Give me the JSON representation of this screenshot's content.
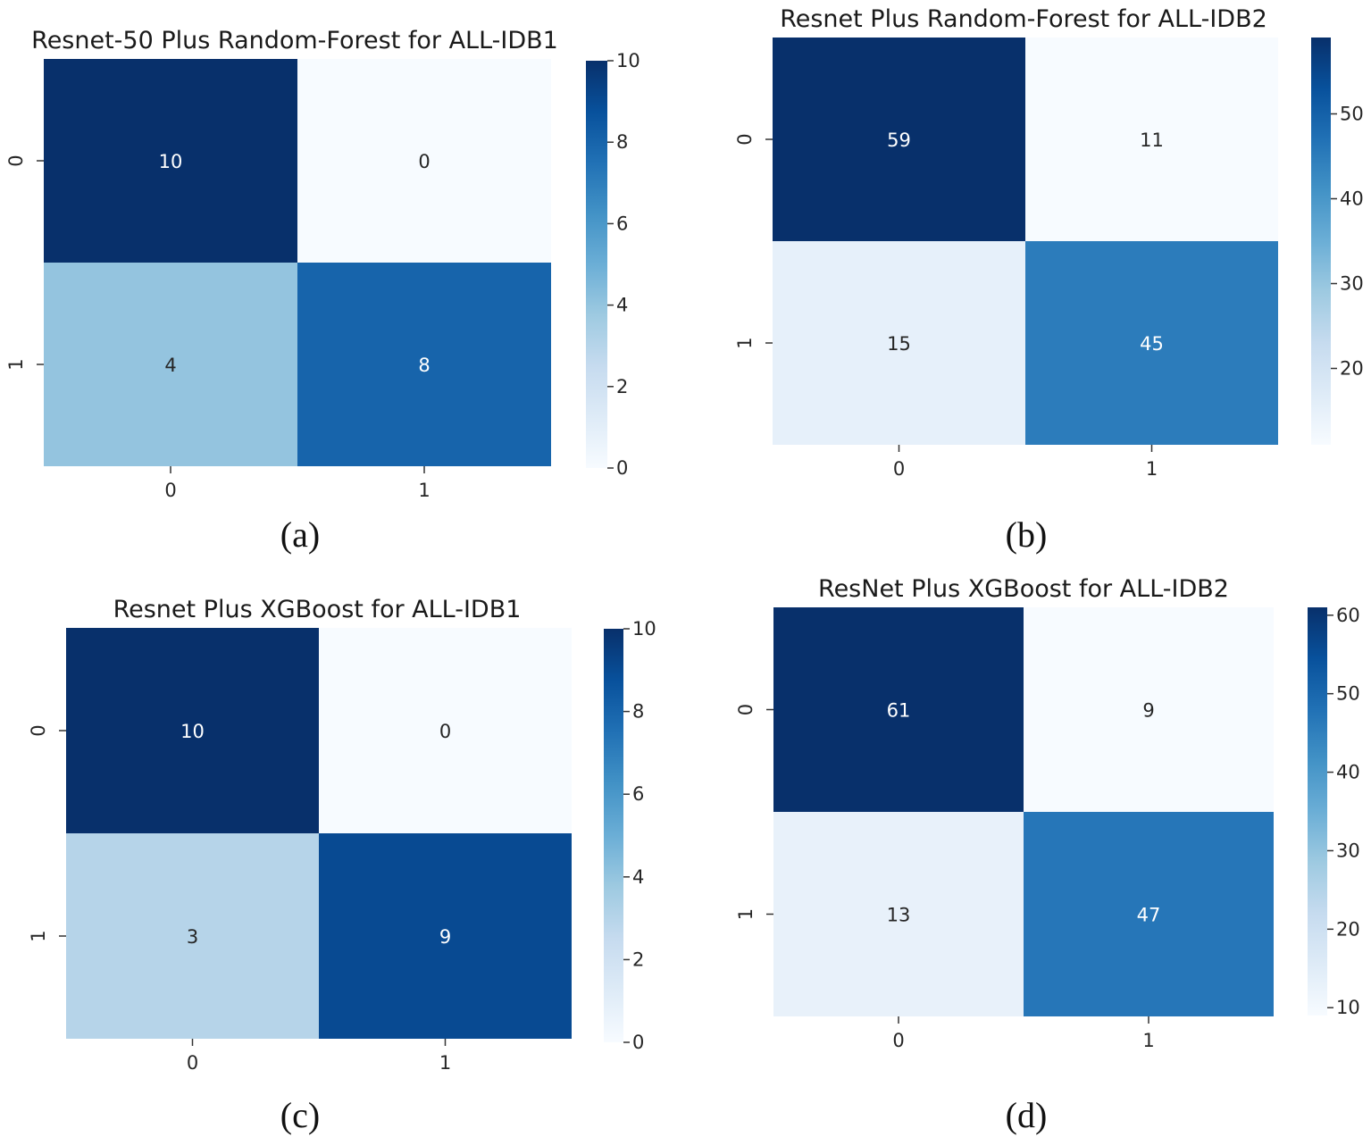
{
  "chart_data": [
    {
      "type": "heatmap",
      "title": "Resnet-50 Plus Random-Forest for ALL-IDB1",
      "caption": "(a)",
      "xlabel": "",
      "ylabel": "",
      "x_categories": [
        "0",
        "1"
      ],
      "y_categories": [
        "0",
        "1"
      ],
      "matrix": [
        [
          10,
          0
        ],
        [
          4,
          8
        ]
      ],
      "cell_labels": [
        [
          "10",
          "0"
        ],
        [
          "4",
          "8"
        ]
      ],
      "colorbar": {
        "min": 0,
        "max": 10,
        "ticks": [
          "0",
          "2",
          "4",
          "6",
          "8",
          "10"
        ]
      }
    },
    {
      "type": "heatmap",
      "title": "Resnet Plus Random-Forest for ALL-IDB2",
      "caption": "(b)",
      "xlabel": "",
      "ylabel": "",
      "x_categories": [
        "0",
        "1"
      ],
      "y_categories": [
        "0",
        "1"
      ],
      "matrix": [
        [
          59,
          11
        ],
        [
          15,
          45
        ]
      ],
      "cell_labels": [
        [
          "59",
          "11"
        ],
        [
          "15",
          "45"
        ]
      ],
      "colorbar": {
        "min": 11,
        "max": 59,
        "ticks": [
          "20",
          "30",
          "40",
          "50"
        ]
      }
    },
    {
      "type": "heatmap",
      "title": "Resnet Plus XGBoost for ALL-IDB1",
      "caption": "(c)",
      "xlabel": "",
      "ylabel": "",
      "x_categories": [
        "0",
        "1"
      ],
      "y_categories": [
        "0",
        "1"
      ],
      "matrix": [
        [
          10,
          0
        ],
        [
          3,
          9
        ]
      ],
      "cell_labels": [
        [
          "10",
          "0"
        ],
        [
          "3",
          "9"
        ]
      ],
      "colorbar": {
        "min": 0,
        "max": 10,
        "ticks": [
          "0",
          "2",
          "4",
          "6",
          "8",
          "10"
        ]
      }
    },
    {
      "type": "heatmap",
      "title": "ResNet Plus XGBoost for ALL-IDB2",
      "caption": "(d)",
      "xlabel": "",
      "ylabel": "",
      "x_categories": [
        "0",
        "1"
      ],
      "y_categories": [
        "0",
        "1"
      ],
      "matrix": [
        [
          61,
          9
        ],
        [
          13,
          47
        ]
      ],
      "cell_labels": [
        [
          "61",
          "9"
        ],
        [
          "13",
          "47"
        ]
      ],
      "colorbar": {
        "min": 9,
        "max": 61,
        "ticks": [
          "10",
          "20",
          "30",
          "40",
          "50",
          "60"
        ]
      }
    }
  ],
  "colors": {
    "blues_scale": [
      "#f7fbff",
      "#deebf7",
      "#c6dbef",
      "#9ecae1",
      "#6baed6",
      "#4292c6",
      "#2171b5",
      "#08519c",
      "#08306b"
    ],
    "text_dark": "#262626",
    "text_light": "#ffffff"
  }
}
